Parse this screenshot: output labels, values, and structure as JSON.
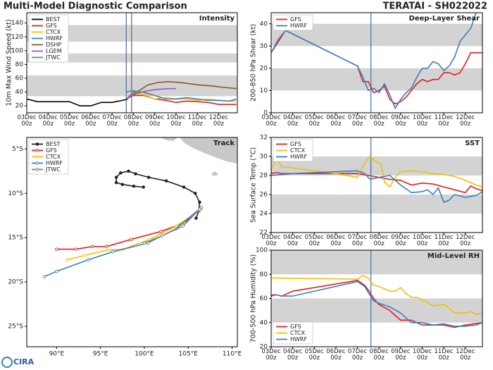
{
  "header": {
    "title": "Multi-Model Diagnostic Comparison",
    "storm": "TERATAI - SH022022"
  },
  "logo": "CIRA",
  "chart_data": [
    {
      "type": "line",
      "title": "Intensity",
      "ylabel": "10m Max Wind Speed (kt)",
      "xlim": [
        0,
        237
      ],
      "ylim": [
        10,
        155
      ],
      "xticks": [
        {
          "value": 0,
          "label": "03Dec\n00z"
        },
        {
          "value": 24,
          "label": "04Dec\n00z"
        },
        {
          "value": 48,
          "label": "05Dec\n00z"
        },
        {
          "value": 72,
          "label": "06Dec\n00z"
        },
        {
          "value": 96,
          "label": "07Dec\n00z"
        },
        {
          "value": 120,
          "label": "08Dec\n00z"
        },
        {
          "value": 144,
          "label": "09Dec\n00z"
        },
        {
          "value": 168,
          "label": "10Dec\n00z"
        },
        {
          "value": 192,
          "label": "11Dec\n00z"
        },
        {
          "value": 216,
          "label": "12Dec\n00z"
        }
      ],
      "yticks": [
        20,
        40,
        60,
        80,
        100,
        120,
        140
      ],
      "bands": [
        [
          34,
          64
        ],
        [
          83,
          96
        ],
        [
          113,
          137
        ]
      ],
      "band_color": "#d3d3d3",
      "vlines": [
        {
          "x": 112,
          "color": "#4a6a9a"
        },
        {
          "x": 118,
          "color": "#8a4a7a"
        }
      ],
      "legend": "upper left",
      "series": [
        {
          "name": "BEST",
          "color": "#000000",
          "x": [
            0,
            12,
            24,
            36,
            48,
            60,
            72,
            84,
            96,
            108,
            114
          ],
          "values": [
            30,
            26,
            26,
            26,
            26,
            20,
            20,
            25,
            25,
            28,
            30
          ]
        },
        {
          "name": "GFS",
          "color": "#e02020",
          "x": [
            112,
            120,
            132,
            144,
            156,
            168,
            180,
            192,
            204,
            216,
            228,
            236
          ],
          "values": [
            30,
            35,
            35,
            30,
            28,
            25,
            27,
            26,
            25,
            22,
            22,
            22
          ]
        },
        {
          "name": "CTCX",
          "color": "#f0c000",
          "x": [
            112,
            120,
            132,
            144,
            156,
            168,
            180,
            192,
            204,
            216,
            228,
            236
          ],
          "values": [
            30,
            38,
            36,
            30,
            32,
            30,
            30,
            28,
            30,
            28,
            27,
            27
          ]
        },
        {
          "name": "HWRF",
          "color": "#3a7fc0",
          "x": [
            112,
            118,
            130,
            144,
            156,
            168,
            180,
            192,
            204,
            216,
            228,
            236
          ],
          "values": [
            40,
            42,
            40,
            35,
            30,
            30,
            32,
            30,
            28,
            28,
            27,
            30
          ]
        },
        {
          "name": "DSHP",
          "color": "#8b5a2b",
          "x": [
            112,
            124,
            136,
            148,
            160,
            172,
            184,
            196,
            208,
            220,
            236
          ],
          "values": [
            30,
            40,
            50,
            54,
            55,
            54,
            52,
            50,
            49,
            47,
            45
          ]
        },
        {
          "name": "LGEM",
          "color": "#9b59b6",
          "x": [
            112,
            124,
            136,
            148,
            160,
            168
          ],
          "values": [
            30,
            38,
            42,
            44,
            45,
            45
          ]
        },
        {
          "name": "JTWC",
          "color": "#808080",
          "x": [
            112,
            120,
            132,
            144
          ],
          "values": [
            30,
            40,
            40,
            35
          ]
        }
      ]
    },
    {
      "type": "line",
      "title": "Track",
      "markers": true,
      "xlim": [
        86.6,
        110.6
      ],
      "ylim": [
        -27.3,
        -3.7
      ],
      "xticks": [
        {
          "value": 90,
          "label": "90°E"
        },
        {
          "value": 95,
          "label": "95°E"
        },
        {
          "value": 100,
          "label": "100°E"
        },
        {
          "value": 105,
          "label": "105°E"
        },
        {
          "value": 110,
          "label": "110°E"
        }
      ],
      "yticks": [
        {
          "value": -5,
          "label": "5°S"
        },
        {
          "value": -10,
          "label": "10°S"
        },
        {
          "value": -15,
          "label": "15°S"
        },
        {
          "value": -20,
          "label": "20°S"
        },
        {
          "value": -25,
          "label": "25°S"
        }
      ],
      "legend": "upper left",
      "series": [
        {
          "name": "BEST",
          "color": "#222222",
          "x": [
            99.9,
            98.8,
            97.5,
            96.8,
            96.8,
            97.3,
            98.2,
            99.0,
            100.5,
            102.5,
            104.5,
            105.8,
            106.3,
            106.2,
            105.9
          ],
          "values": [
            -9.3,
            -9.2,
            -9.0,
            -8.8,
            -8.2,
            -7.7,
            -7.5,
            -7.8,
            -8.2,
            -8.6,
            -9.3,
            -10.0,
            -11.0,
            -12.0,
            -12.8
          ]
        },
        {
          "name": "GFS",
          "color": "#e02020",
          "x": [
            106.4,
            104.6,
            101.9,
            98.5,
            95.7,
            94.1,
            92.2,
            90.0
          ],
          "values": [
            -11.8,
            -13.3,
            -14.3,
            -15.2,
            -16.0,
            -16.0,
            -16.3,
            -16.3
          ]
        },
        {
          "name": "CTCX",
          "color": "#f0c000",
          "x": [
            106.4,
            103.6,
            100.6,
            97.6,
            95.8,
            93.2,
            91.2
          ],
          "values": [
            -11.9,
            -13.7,
            -15.2,
            -16.3,
            -16.4,
            -17.0,
            -17.5
          ]
        },
        {
          "name": "HWRF",
          "color": "#3a7fc0",
          "x": [
            106.5,
            103.6,
            100.4,
            96.4,
            93.6,
            90.0,
            88.6
          ],
          "values": [
            -11.6,
            -14.0,
            -15.6,
            -16.6,
            -17.5,
            -18.8,
            -19.4
          ]
        },
        {
          "name": "JTWC",
          "color": "#808080",
          "x": [
            106.3,
            104.4,
            102.0,
            100.0
          ],
          "values": [
            -11.8,
            -13.7,
            -14.8,
            -15.6
          ]
        }
      ]
    },
    {
      "type": "line",
      "title": "Deep-Layer Shear",
      "ylabel": "200-850 hPa Shear (kt)",
      "xlim": [
        0,
        235
      ],
      "ylim": [
        0,
        45
      ],
      "xticks": [
        {
          "value": 0,
          "label": "03Dec\n00z"
        },
        {
          "value": 24,
          "label": "04Dec\n00z"
        },
        {
          "value": 48,
          "label": "05Dec\n00z"
        },
        {
          "value": 72,
          "label": "06Dec\n00z"
        },
        {
          "value": 96,
          "label": "07Dec\n00z"
        },
        {
          "value": 120,
          "label": "08Dec\n00z"
        },
        {
          "value": 144,
          "label": "09Dec\n00z"
        },
        {
          "value": 168,
          "label": "10Dec\n00z"
        },
        {
          "value": 192,
          "label": "11Dec\n00z"
        },
        {
          "value": 216,
          "label": "12Dec\n00z"
        }
      ],
      "yticks": [
        0,
        10,
        20,
        30,
        40
      ],
      "bands": [
        [
          10,
          20
        ],
        [
          30,
          40
        ]
      ],
      "band_color": "#d3d3d3",
      "vlines": [
        {
          "x": 111,
          "color": "#3a6fb0"
        }
      ],
      "legend": "upper left",
      "series": [
        {
          "name": "GFS",
          "color": "#e02020",
          "x": [
            0,
            8,
            16,
            96,
            102,
            108,
            114,
            120,
            126,
            132,
            138,
            144,
            150,
            156,
            162,
            168,
            174,
            180,
            186,
            192,
            198,
            204,
            210,
            216,
            222,
            235
          ],
          "values": [
            27,
            32,
            37,
            21,
            14,
            14,
            9,
            10,
            12,
            6,
            4,
            5,
            7,
            10,
            13,
            15,
            14,
            15,
            15,
            18,
            18,
            17,
            18,
            22,
            27,
            27
          ]
        },
        {
          "name": "HWRF",
          "color": "#3a7fc0",
          "x": [
            0,
            8,
            16,
            96,
            102,
            108,
            114,
            120,
            126,
            132,
            138,
            144,
            150,
            156,
            162,
            168,
            174,
            180,
            186,
            192,
            198,
            204,
            210,
            216,
            222,
            228
          ],
          "values": [
            27,
            33,
            37,
            21,
            16,
            10,
            11,
            9,
            13,
            8,
            2,
            6,
            9,
            11,
            16,
            20,
            20,
            23,
            22,
            19,
            21,
            25,
            32,
            35,
            38,
            45
          ]
        }
      ]
    },
    {
      "type": "line",
      "title": "SST",
      "ylabel": "Sea Surface Temp (°C)",
      "xlim": [
        0,
        235
      ],
      "ylim": [
        22,
        32
      ],
      "xticks": [
        {
          "value": 0,
          "label": "03Dec\n00z"
        },
        {
          "value": 24,
          "label": "04Dec\n00z"
        },
        {
          "value": 48,
          "label": "05Dec\n00z"
        },
        {
          "value": 72,
          "label": "06Dec\n00z"
        },
        {
          "value": 96,
          "label": "07Dec\n00z"
        },
        {
          "value": 120,
          "label": "08Dec\n00z"
        },
        {
          "value": 144,
          "label": "09Dec\n00z"
        },
        {
          "value": 168,
          "label": "10Dec\n00z"
        },
        {
          "value": 192,
          "label": "11Dec\n00z"
        },
        {
          "value": 216,
          "label": "12Dec\n00z"
        }
      ],
      "yticks": [
        22,
        24,
        26,
        28,
        30,
        32
      ],
      "bands": [
        [
          24,
          26
        ],
        [
          28,
          30
        ]
      ],
      "band_color": "#d3d3d3",
      "vlines": [
        {
          "x": 111,
          "color": "#3a6fb0"
        }
      ],
      "legend": "upper left",
      "series": [
        {
          "name": "GFS",
          "color": "#e02020",
          "x": [
            0,
            6,
            12,
            96,
            108,
            114,
            120,
            132,
            144,
            156,
            168,
            180,
            192,
            204,
            216,
            222,
            228,
            235
          ],
          "values": [
            28.2,
            28.3,
            28.2,
            28.2,
            28.0,
            27.9,
            27.8,
            27.6,
            27.5,
            27.0,
            27.2,
            27.1,
            26.8,
            26.5,
            26.2,
            26.9,
            26.6,
            26.4
          ]
        },
        {
          "name": "CTCX",
          "color": "#f0c000",
          "x": [
            0,
            6,
            12,
            24,
            48,
            72,
            96,
            104,
            110,
            116,
            122,
            126,
            132,
            138,
            144,
            156,
            168,
            180,
            192,
            204,
            216,
            228,
            235
          ],
          "values": [
            28.6,
            29.8,
            28.9,
            28.8,
            28.5,
            28.2,
            27.8,
            29.3,
            30.0,
            29.5,
            29.2,
            27.3,
            26.8,
            27.8,
            28.4,
            28.5,
            28.4,
            28.2,
            28.1,
            27.9,
            27.5,
            27.0,
            26.8
          ]
        },
        {
          "name": "HWRF",
          "color": "#3a7fc0",
          "x": [
            0,
            24,
            48,
            96,
            104,
            110,
            120,
            132,
            144,
            156,
            168,
            174,
            180,
            186,
            192,
            198,
            204,
            216,
            228,
            235
          ],
          "values": [
            28.0,
            28.2,
            28.3,
            28.5,
            28.2,
            27.6,
            27.8,
            28.0,
            27.0,
            26.2,
            26.3,
            26.5,
            26.0,
            26.7,
            25.2,
            25.4,
            26.0,
            25.7,
            25.9,
            26.3
          ]
        }
      ]
    },
    {
      "type": "line",
      "title": "Mid-Level RH",
      "ylabel": "700-500 hPa Humidity (%)",
      "xlim": [
        0,
        235
      ],
      "ylim": [
        20,
        100
      ],
      "xticks": [
        {
          "value": 0,
          "label": "03Dec\n00z"
        },
        {
          "value": 24,
          "label": "04Dec\n00z"
        },
        {
          "value": 48,
          "label": "05Dec\n00z"
        },
        {
          "value": 72,
          "label": "06Dec\n00z"
        },
        {
          "value": 96,
          "label": "07Dec\n00z"
        },
        {
          "value": 120,
          "label": "08Dec\n00z"
        },
        {
          "value": 144,
          "label": "09Dec\n00z"
        },
        {
          "value": 168,
          "label": "10Dec\n00z"
        },
        {
          "value": 192,
          "label": "11Dec\n00z"
        },
        {
          "value": 216,
          "label": "12Dec\n00z"
        }
      ],
      "yticks": [
        20,
        40,
        60,
        80,
        100
      ],
      "bands": [
        [
          40,
          60
        ],
        [
          80,
          100
        ]
      ],
      "band_color": "#d3d3d3",
      "vlines": [
        {
          "x": 111,
          "color": "#3a6fb0"
        }
      ],
      "legend": "lower left",
      "series": [
        {
          "name": "GFS",
          "color": "#e02020",
          "x": [
            0,
            6,
            12,
            24,
            96,
            104,
            108,
            114,
            120,
            132,
            138,
            144,
            156,
            162,
            168,
            180,
            192,
            204,
            216,
            235
          ],
          "values": [
            63,
            63,
            62,
            66,
            75,
            71,
            67,
            60,
            55,
            50,
            46,
            42,
            42,
            40,
            38,
            38,
            38,
            36,
            38,
            40
          ]
        },
        {
          "name": "CTCX",
          "color": "#f0c000",
          "x": [
            0,
            96,
            102,
            108,
            114,
            120,
            132,
            138,
            144,
            150,
            156,
            162,
            168,
            180,
            192,
            198,
            204,
            216,
            222,
            228,
            235
          ],
          "values": [
            77,
            76,
            79,
            77,
            71,
            70,
            66,
            66,
            69,
            64,
            61,
            61,
            59,
            54,
            55,
            52,
            48,
            48,
            49,
            47,
            48
          ]
        },
        {
          "name": "HWRF",
          "color": "#3a7fc0",
          "x": [
            0,
            6,
            12,
            24,
            96,
            104,
            108,
            114,
            120,
            132,
            144,
            156,
            168,
            180,
            192,
            204,
            216,
            228,
            235
          ],
          "values": [
            62,
            63,
            62,
            62,
            74,
            70,
            65,
            58,
            56,
            53,
            48,
            40,
            40,
            38,
            39,
            37,
            37,
            38,
            40
          ]
        }
      ]
    }
  ]
}
